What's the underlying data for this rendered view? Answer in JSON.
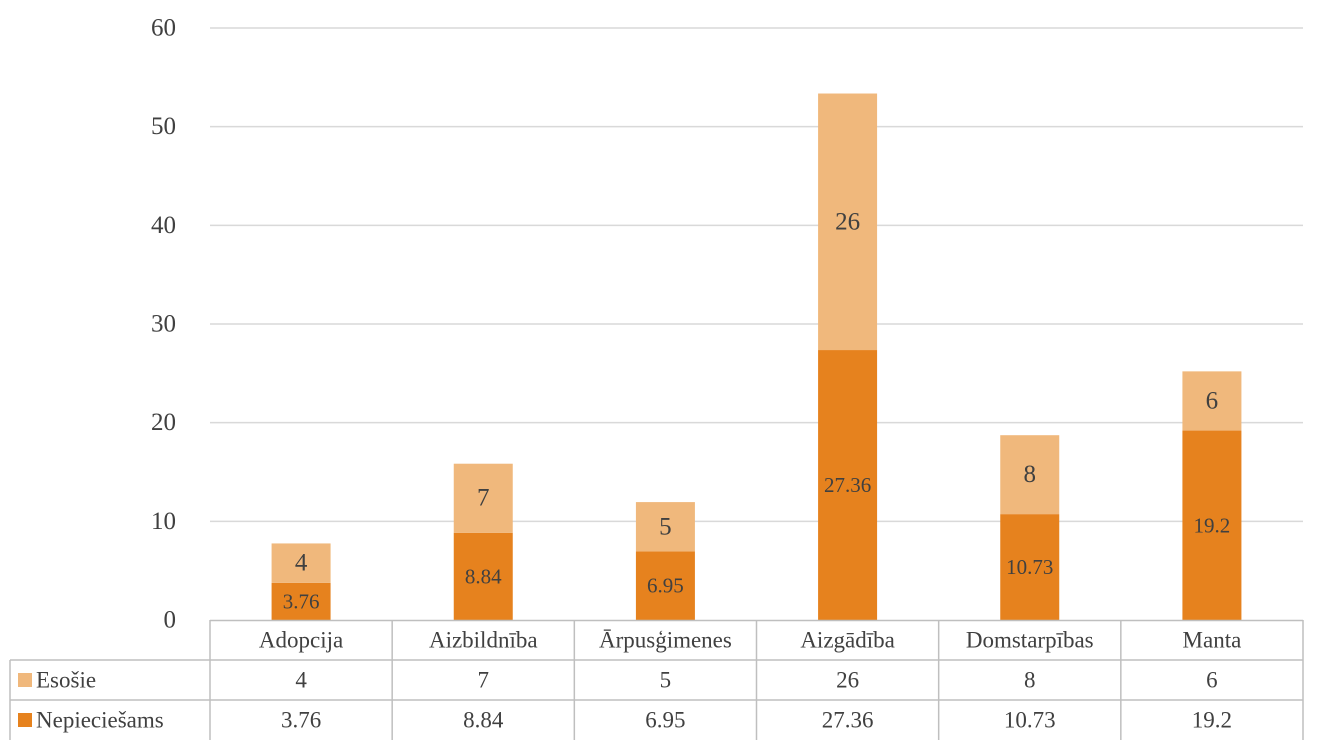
{
  "chart_data": {
    "type": "bar",
    "stacked": true,
    "categories": [
      "Adopcija",
      "Aizbildnība",
      "Ārpusģimenes",
      "Aizgādība",
      "Domstarpības",
      "Manta"
    ],
    "series": [
      {
        "name": "Nepieciešams",
        "values": [
          3.76,
          8.84,
          6.95,
          27.36,
          10.73,
          19.2
        ],
        "color": "#E6821E"
      },
      {
        "name": "Esošie",
        "values": [
          4,
          7,
          5,
          26,
          8,
          6
        ],
        "color": "#F0B87C"
      }
    ],
    "ylim": [
      0,
      60
    ],
    "yticks": [
      0,
      10,
      20,
      30,
      40,
      50,
      60
    ],
    "grid": true,
    "legend": "data-table-left",
    "data_table": true
  },
  "colors": {
    "grid": "#D9D9D9",
    "text": "#404040",
    "table_border": "#BFBFBF"
  }
}
